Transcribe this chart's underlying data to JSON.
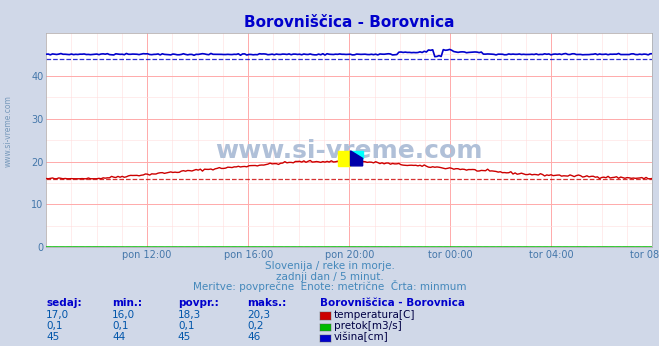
{
  "title": "Borovniščica - Borovnica",
  "title_color": "#0000cc",
  "bg_color": "#d0d8e8",
  "plot_bg_color": "#ffffff",
  "grid_color_major": "#ffaaaa",
  "grid_color_minor": "#ffdddd",
  "ylim": [
    0,
    50
  ],
  "yticks": [
    0,
    10,
    20,
    30,
    40
  ],
  "xlabel_color": "#4477aa",
  "xtick_labels": [
    "pon 12:00",
    "pon 16:00",
    "pon 20:00",
    "tor 00:00",
    "tor 04:00",
    "tor 08:00"
  ],
  "n_points": 288,
  "temp_color": "#cc0000",
  "pretok_color": "#00bb00",
  "visina_color": "#0000cc",
  "temp_min": 16.0,
  "temp_max": 20.3,
  "temp_avg": 18.3,
  "pretok_min": 0.1,
  "pretok_max": 0.2,
  "pretok_avg": 0.1,
  "visina_min": 44,
  "visina_max": 46,
  "visina_avg": 45,
  "watermark": "www.si-vreme.com",
  "watermark_color": "#b0c0d8",
  "subtitle1": "Slovenija / reke in morje.",
  "subtitle2": "zadnji dan / 5 minut.",
  "subtitle3": "Meritve: povprečne  Enote: metrične  Črta: minmum",
  "subtitle_color": "#4488bb",
  "table_header_color": "#0000cc",
  "table_value_color": "#0055aa",
  "legend_label_color": "#000044"
}
